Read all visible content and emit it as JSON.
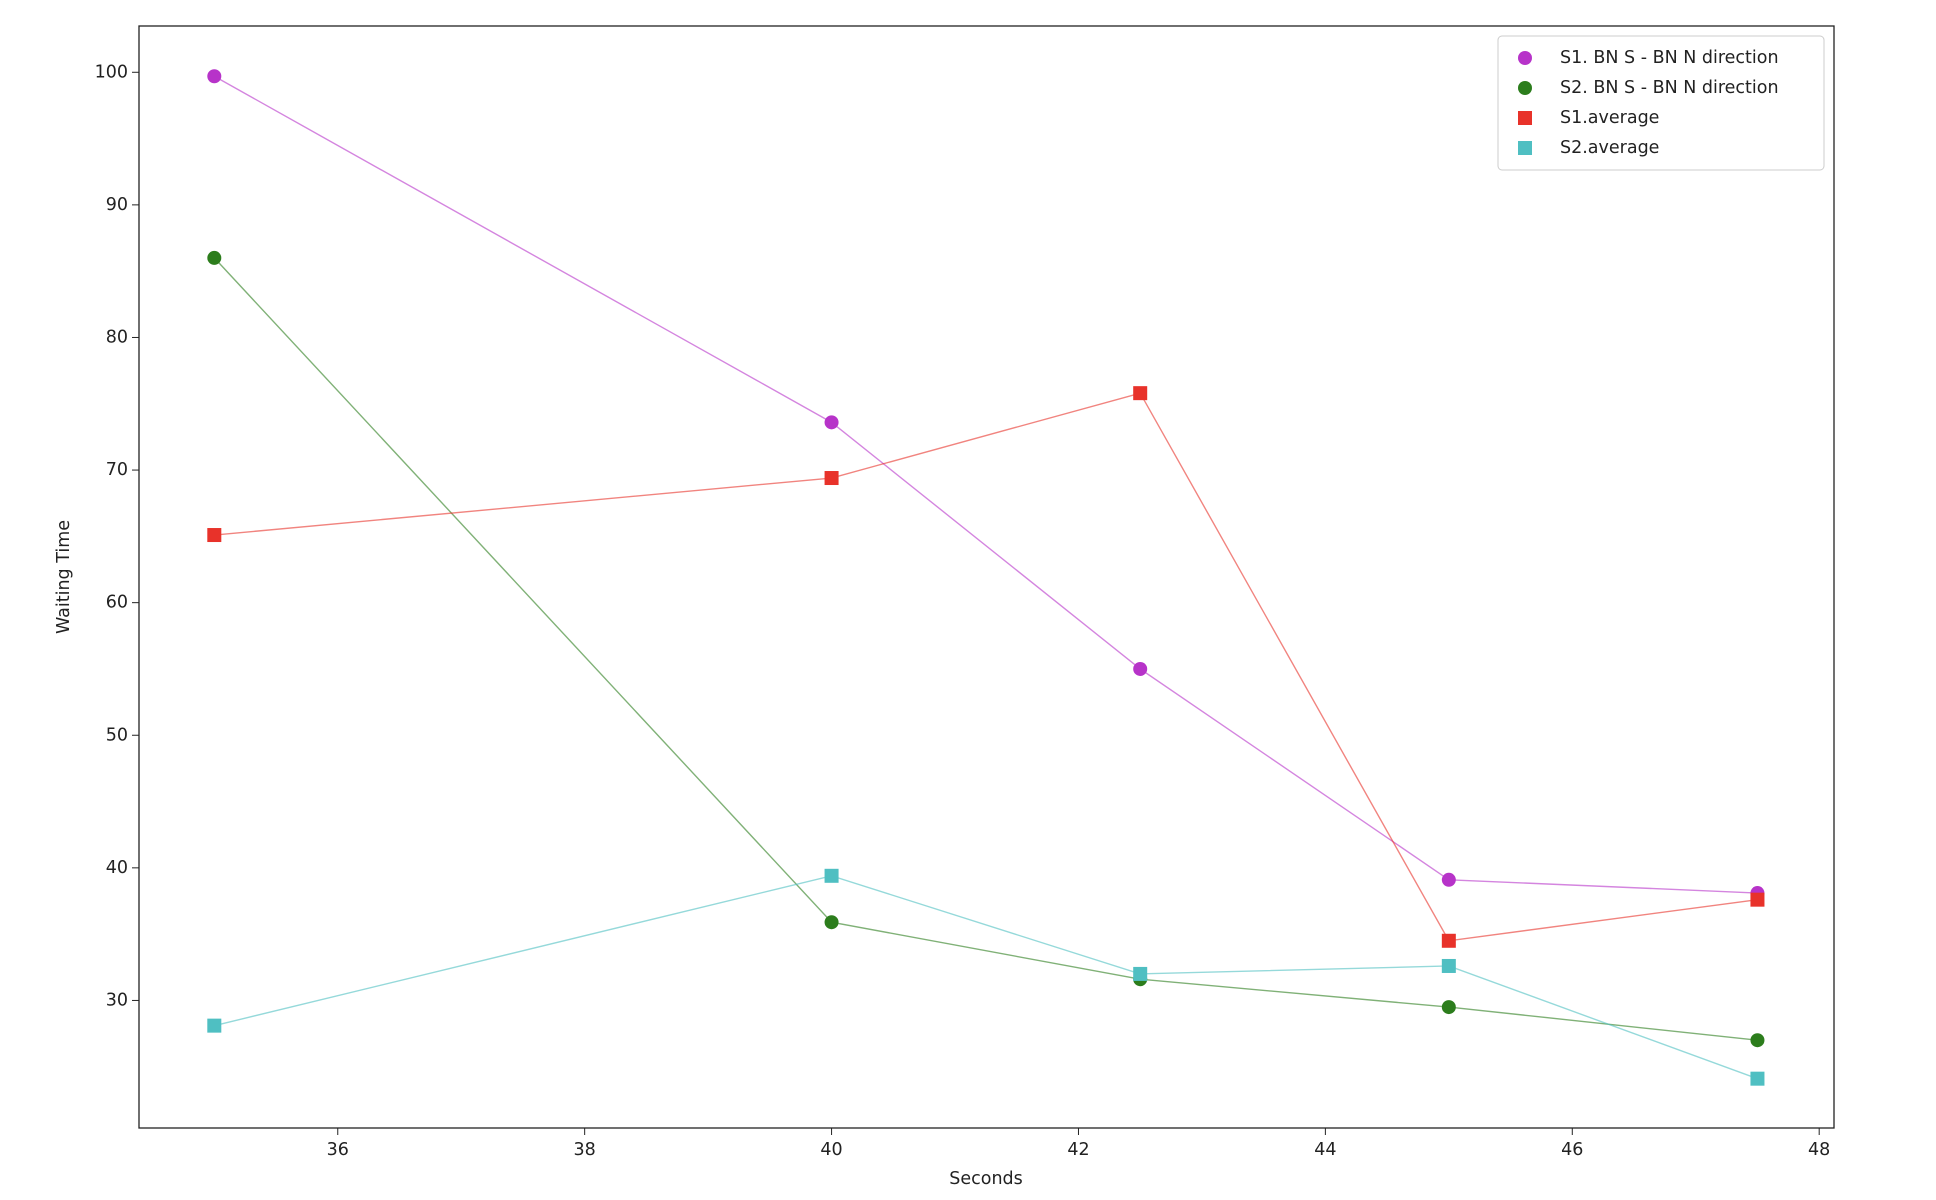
{
  "chart_data": {
    "type": "line",
    "xlabel": "Seconds",
    "ylabel": "Waiting Time",
    "x": [
      35,
      40,
      42.5,
      45,
      47.5
    ],
    "series": [
      {
        "name": "S1. BN S - BN N direction",
        "color": "#b733c9",
        "marker": "circle",
        "values": [
          99.7,
          73.6,
          55.0,
          39.1,
          38.1
        ]
      },
      {
        "name": "S2. BN S - BN N direction",
        "color": "#2c7d1c",
        "marker": "circle",
        "values": [
          86.0,
          35.9,
          31.6,
          29.5,
          27.0
        ]
      },
      {
        "name": "S1.average",
        "color": "#e8322a",
        "marker": "square",
        "values": [
          65.1,
          69.4,
          75.8,
          34.5,
          37.6
        ]
      },
      {
        "name": "S2.average",
        "color": "#4fbfc2",
        "marker": "square",
        "values": [
          28.1,
          39.4,
          32.0,
          32.6,
          24.1
        ]
      }
    ],
    "xlim": [
      34.39,
      48.12
    ],
    "xticks": [
      36,
      38,
      40,
      42,
      44,
      46,
      48
    ],
    "ylim": [
      20.38,
      103.49
    ],
    "yticks": [
      30,
      40,
      50,
      60,
      70,
      80,
      90,
      100
    ],
    "grid": false,
    "legend": "upper right"
  }
}
